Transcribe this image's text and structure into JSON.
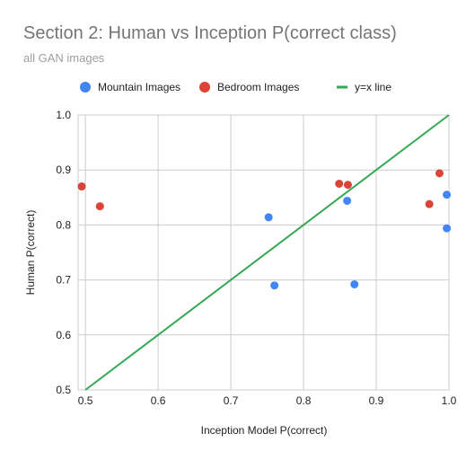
{
  "chart_data": {
    "type": "scatter",
    "title": "Section 2: Human vs Inception P(correct class)",
    "subtitle": "all GAN images",
    "xlabel": "Inception Model P(correct)",
    "ylabel": "Human P(correct)",
    "xlim": [
      0.49,
      1.0
    ],
    "ylim": [
      0.5,
      1.0
    ],
    "x_ticks": [
      "0.5",
      "0.6",
      "0.7",
      "0.8",
      "0.9",
      "1.0"
    ],
    "y_ticks": [
      "0.5",
      "0.6",
      "0.7",
      "0.8",
      "0.9",
      "1.0"
    ],
    "grid": true,
    "legend_position": "top",
    "series": [
      {
        "name": "Mountain Images",
        "color": "#4285f4",
        "points": [
          {
            "x": 0.752,
            "y": 0.814
          },
          {
            "x": 0.76,
            "y": 0.69
          },
          {
            "x": 0.86,
            "y": 0.844
          },
          {
            "x": 0.87,
            "y": 0.692
          },
          {
            "x": 0.997,
            "y": 0.855
          },
          {
            "x": 0.997,
            "y": 0.794
          }
        ]
      },
      {
        "name": "Bedroom Images",
        "color": "#db4437",
        "points": [
          {
            "x": 0.495,
            "y": 0.87
          },
          {
            "x": 0.52,
            "y": 0.834
          },
          {
            "x": 0.849,
            "y": 0.875
          },
          {
            "x": 0.861,
            "y": 0.873
          },
          {
            "x": 0.973,
            "y": 0.838
          },
          {
            "x": 0.987,
            "y": 0.894
          }
        ]
      },
      {
        "name": "y=x line",
        "color": "#34a853",
        "type": "line",
        "points": [
          {
            "x": 0.5,
            "y": 0.5
          },
          {
            "x": 1.0,
            "y": 1.0
          }
        ]
      }
    ]
  }
}
